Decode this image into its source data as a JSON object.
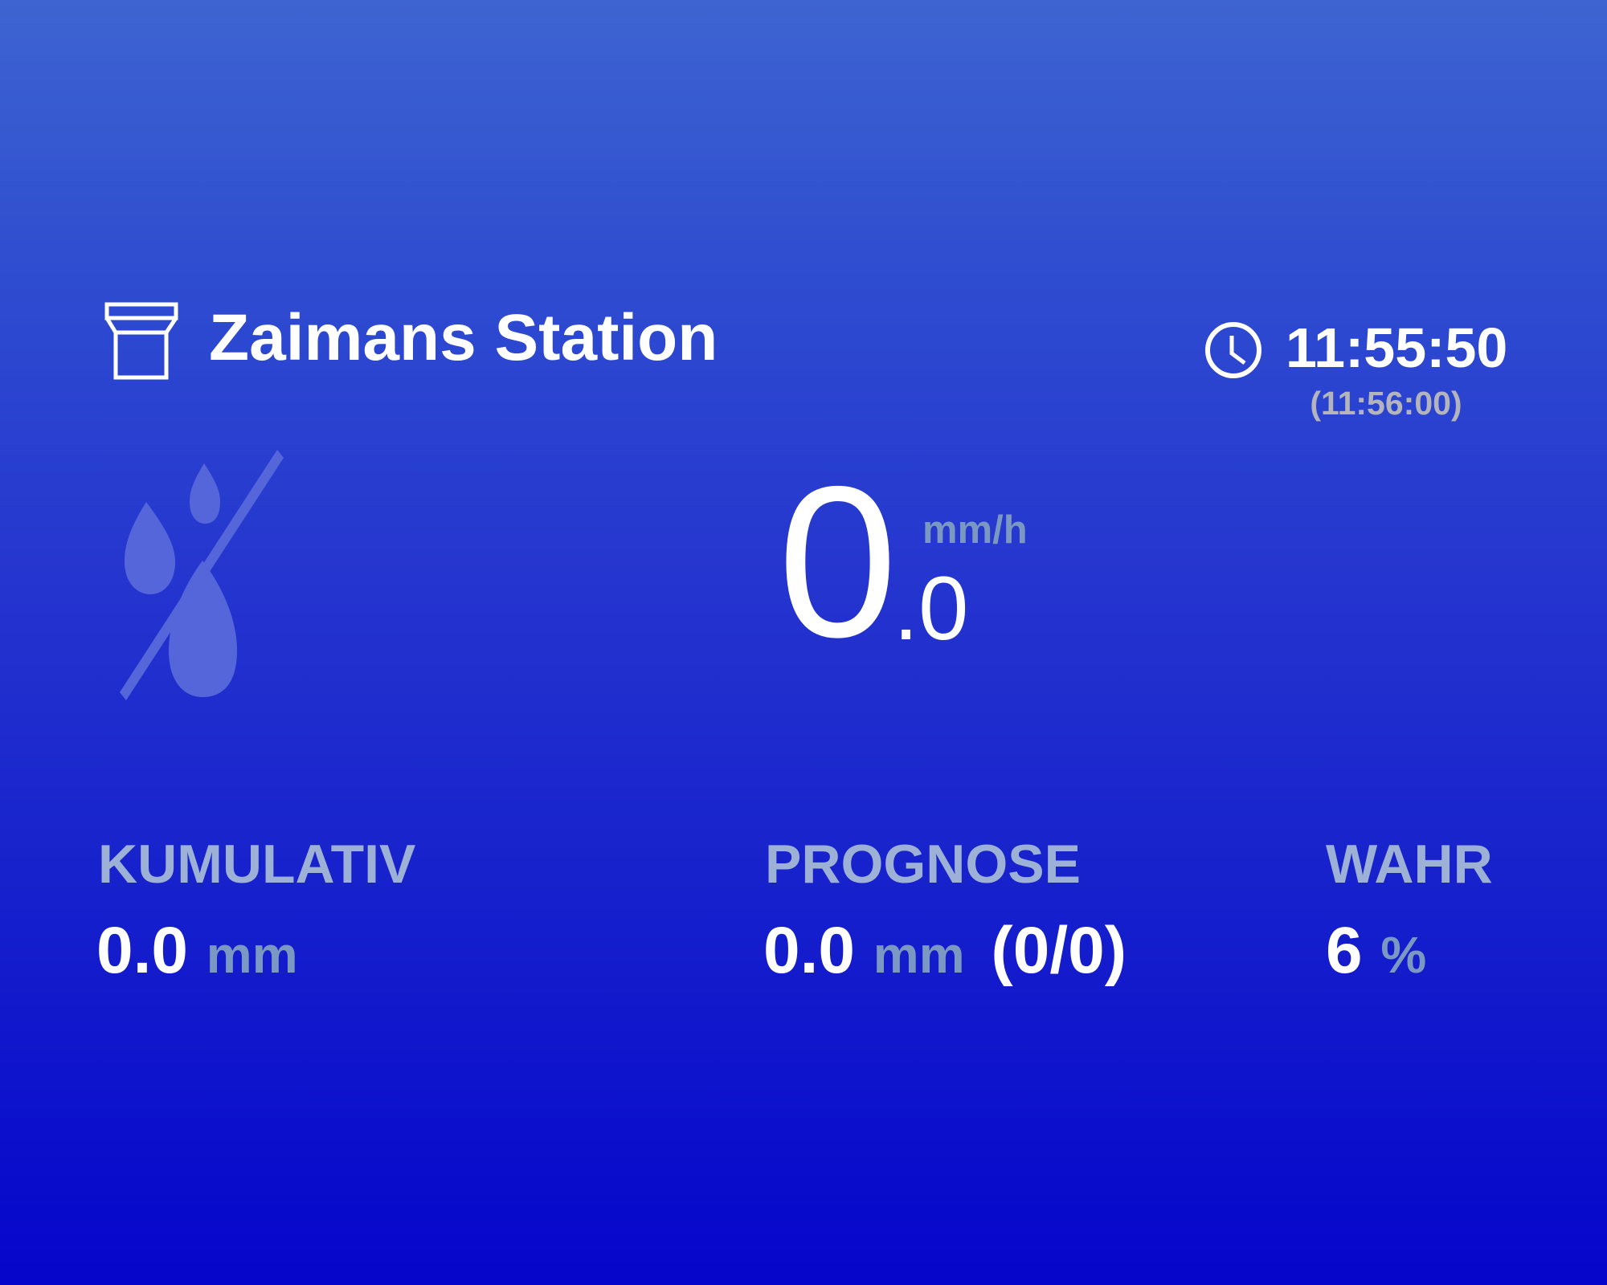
{
  "header": {
    "station_icon": "rain-gauge-icon",
    "title": "Zaimans Station",
    "clock_icon": "clock-icon",
    "time": "11:55:50",
    "next_update": "(11:56:00)"
  },
  "current": {
    "status_icon": "no-rain-icon",
    "rate_integer": "0",
    "rate_decimal": ".0",
    "rate_unit": "mm/h"
  },
  "stats": {
    "cumulative": {
      "label": "KUMULATIV",
      "value": "0.0",
      "unit": "mm"
    },
    "forecast": {
      "label": "PROGNOSE",
      "value": "0.0",
      "unit": "mm",
      "extra": "(0/0)"
    },
    "probability": {
      "label": "WAHR",
      "value": "6",
      "unit": "%"
    }
  },
  "colors": {
    "background_top": "#3e64d1",
    "background_bottom": "#0505cb",
    "unit_text": "#7b98c2",
    "label_text": "#9db0d6"
  }
}
